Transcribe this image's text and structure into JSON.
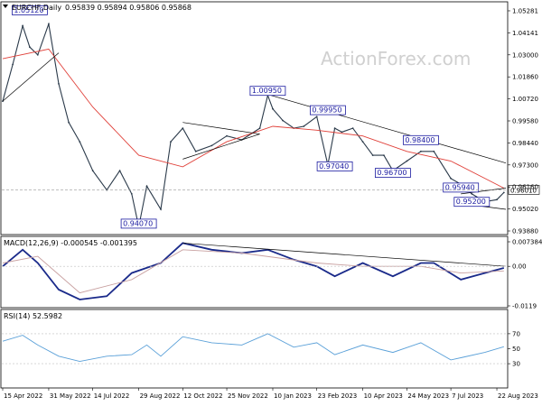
{
  "watermark": "ActionForex.com",
  "chart_data": [
    {
      "type": "candlestick",
      "panel": "price",
      "title": "EURCHF,Daily",
      "ohlc_label": "0.95839 0.95894 0.95806 0.95868",
      "y_ticks": [
        "1.05281",
        "1.04141",
        "1.03000",
        "1.01860",
        "1.00720",
        "0.99580",
        "0.98440",
        "0.97300",
        "0.96160",
        "0.95020",
        "0.93880"
      ],
      "ylim": [
        0.9388,
        1.0528
      ],
      "current_price_label": "0.96010",
      "series": [
        {
          "name": "price",
          "x": [
            "2022-04-15",
            "2022-04-25",
            "2022-05-05",
            "2022-05-12",
            "2022-05-20",
            "2022-05-31",
            "2022-06-10",
            "2022-06-20",
            "2022-07-01",
            "2022-07-14",
            "2022-07-28",
            "2022-08-10",
            "2022-08-22",
            "2022-08-29",
            "2022-09-06",
            "2022-09-20",
            "2022-09-30",
            "2022-10-12",
            "2022-10-25",
            "2022-11-10",
            "2022-11-25",
            "2022-12-10",
            "2022-12-28",
            "2023-01-05",
            "2023-01-10",
            "2023-01-20",
            "2023-01-31",
            "2023-02-10",
            "2023-02-23",
            "2023-03-06",
            "2023-03-13",
            "2023-03-20",
            "2023-03-31",
            "2023-04-10",
            "2023-04-20",
            "2023-05-01",
            "2023-05-10",
            "2023-05-24",
            "2023-06-07",
            "2023-06-20",
            "2023-07-07",
            "2023-07-17",
            "2023-07-28",
            "2023-08-10",
            "2023-08-22",
            "2023-08-29"
          ],
          "values": [
            1.006,
            1.025,
            1.045,
            1.034,
            1.03,
            1.046,
            1.015,
            0.995,
            0.985,
            0.97,
            0.96,
            0.97,
            0.958,
            0.941,
            0.962,
            0.95,
            0.985,
            0.992,
            0.98,
            0.983,
            0.988,
            0.986,
            0.992,
            1.009,
            1.002,
            0.996,
            0.992,
            0.993,
            0.998,
            0.973,
            0.992,
            0.99,
            0.992,
            0.985,
            0.978,
            0.978,
            0.97,
            0.975,
            0.98,
            0.98,
            0.966,
            0.963,
            0.958,
            0.954,
            0.955,
            0.9587
          ]
        },
        {
          "name": "ma",
          "x": [
            "2022-04-15",
            "2022-05-31",
            "2022-07-14",
            "2022-08-29",
            "2022-10-12",
            "2022-11-25",
            "2023-01-10",
            "2023-02-23",
            "2023-04-10",
            "2023-05-24",
            "2023-07-07",
            "2023-08-29"
          ],
          "values": [
            1.028,
            1.033,
            1.003,
            0.978,
            0.972,
            0.985,
            0.993,
            0.991,
            0.988,
            0.98,
            0.975,
            0.961
          ]
        }
      ],
      "annotations": [
        {
          "label": "1.05120",
          "x": "2022-05-12",
          "y": 1.0512
        },
        {
          "label": "0.94070",
          "x": "2022-08-29",
          "y": 0.9407
        },
        {
          "label": "1.00950",
          "x": "2023-01-05",
          "y": 1.0095
        },
        {
          "label": "0.99950",
          "x": "2023-03-06",
          "y": 0.9995
        },
        {
          "label": "0.97040",
          "x": "2023-03-13",
          "y": 0.9704
        },
        {
          "label": "0.98400",
          "x": "2023-06-07",
          "y": 0.984
        },
        {
          "label": "0.96700",
          "x": "2023-05-10",
          "y": 0.967
        },
        {
          "label": "0.95940",
          "x": "2023-07-17",
          "y": 0.9594
        },
        {
          "label": "0.95200",
          "x": "2023-07-28",
          "y": 0.952
        }
      ],
      "trendlines": [
        {
          "from": [
            "2022-04-15",
            1.006
          ],
          "to": [
            "2022-06-10",
            1.031
          ]
        },
        {
          "from": [
            "2022-10-12",
            0.995
          ],
          "to": [
            "2022-12-28",
            0.989
          ]
        },
        {
          "from": [
            "2022-10-12",
            0.976
          ],
          "to": [
            "2022-12-28",
            0.989
          ]
        },
        {
          "from": [
            "2023-01-05",
            1.0095
          ],
          "to": [
            "2023-08-31",
            0.974
          ]
        },
        {
          "from": [
            "2023-07-17",
            0.958
          ],
          "to": [
            "2023-08-31",
            0.961
          ]
        },
        {
          "from": [
            "2023-07-17",
            0.953
          ],
          "to": [
            "2023-08-31",
            0.95
          ]
        }
      ]
    },
    {
      "type": "line",
      "panel": "macd",
      "title": "MACD(12,26,9) -0.000545 -0.001395",
      "y_ticks": [
        "0.007384",
        "0.00",
        "-0.0119"
      ],
      "ylim": [
        -0.0119,
        0.007384
      ],
      "series": [
        {
          "name": "macd",
          "x": [
            "2022-04-15",
            "2022-05-05",
            "2022-05-20",
            "2022-06-10",
            "2022-07-01",
            "2022-07-28",
            "2022-08-22",
            "2022-09-20",
            "2022-10-12",
            "2022-11-10",
            "2022-12-10",
            "2023-01-05",
            "2023-01-31",
            "2023-02-23",
            "2023-03-13",
            "2023-04-10",
            "2023-05-10",
            "2023-06-07",
            "2023-06-20",
            "2023-07-17",
            "2023-08-10",
            "2023-08-29"
          ],
          "values": [
            0.0,
            0.005,
            0.001,
            -0.007,
            -0.01,
            -0.009,
            -0.002,
            0.001,
            0.007,
            0.005,
            0.004,
            0.005,
            0.002,
            0.0,
            -0.003,
            0.001,
            -0.003,
            0.001,
            0.001,
            -0.004,
            -0.002,
            -0.0005
          ]
        },
        {
          "name": "signal",
          "x": [
            "2022-04-15",
            "2022-05-20",
            "2022-07-01",
            "2022-08-22",
            "2022-10-12",
            "2022-12-10",
            "2023-02-23",
            "2023-04-10",
            "2023-06-07",
            "2023-07-17",
            "2023-08-29"
          ],
          "values": [
            0.001,
            0.003,
            -0.008,
            -0.004,
            0.005,
            0.004,
            0.001,
            0.0,
            0.0,
            -0.002,
            -0.0014
          ]
        }
      ],
      "trendlines": [
        {
          "from": [
            "2022-10-12",
            0.007
          ],
          "to": [
            "2023-08-31",
            0.0
          ]
        }
      ]
    },
    {
      "type": "line",
      "panel": "rsi",
      "title": "RSI(14) 52.5982",
      "y_ticks": [
        "70",
        "50",
        "30"
      ],
      "ylim": [
        0,
        100
      ],
      "series": [
        {
          "name": "rsi",
          "x": [
            "2022-04-15",
            "2022-05-05",
            "2022-05-20",
            "2022-06-10",
            "2022-07-01",
            "2022-07-28",
            "2022-08-22",
            "2022-09-06",
            "2022-09-20",
            "2022-10-12",
            "2022-11-10",
            "2022-12-10",
            "2023-01-05",
            "2023-01-31",
            "2023-02-23",
            "2023-03-13",
            "2023-04-10",
            "2023-05-10",
            "2023-06-07",
            "2023-07-07",
            "2023-07-17",
            "2023-08-10",
            "2023-08-29"
          ],
          "values": [
            60,
            68,
            55,
            40,
            33,
            40,
            42,
            55,
            40,
            66,
            58,
            55,
            70,
            52,
            58,
            42,
            55,
            45,
            58,
            35,
            38,
            45,
            52.6
          ]
        }
      ]
    }
  ],
  "x_axis": {
    "labels": [
      "15 Apr 2022",
      "31 May 2022",
      "14 Jul 2022",
      "29 Aug 2022",
      "12 Oct 2022",
      "25 Nov 2022",
      "10 Jan 2023",
      "23 Feb 2023",
      "10 Apr 2023",
      "24 May 2023",
      "7 Jul 2023",
      "22 Aug 2023"
    ],
    "dates": [
      "2022-04-15",
      "2022-05-31",
      "2022-07-14",
      "2022-08-29",
      "2022-10-12",
      "2022-11-25",
      "2023-01-10",
      "2023-02-23",
      "2023-04-10",
      "2023-05-24",
      "2023-07-07",
      "2023-08-22"
    ],
    "start": "2022-04-15",
    "end": "2023-08-31"
  },
  "colors": {
    "price": "#2b3a4a",
    "ma": "#e0413a",
    "macd": "#1a2a8a",
    "signal": "#c8a0a0",
    "rsi": "#5aa0d8",
    "trend": "#000000",
    "label_box": "#1a1aa0"
  }
}
